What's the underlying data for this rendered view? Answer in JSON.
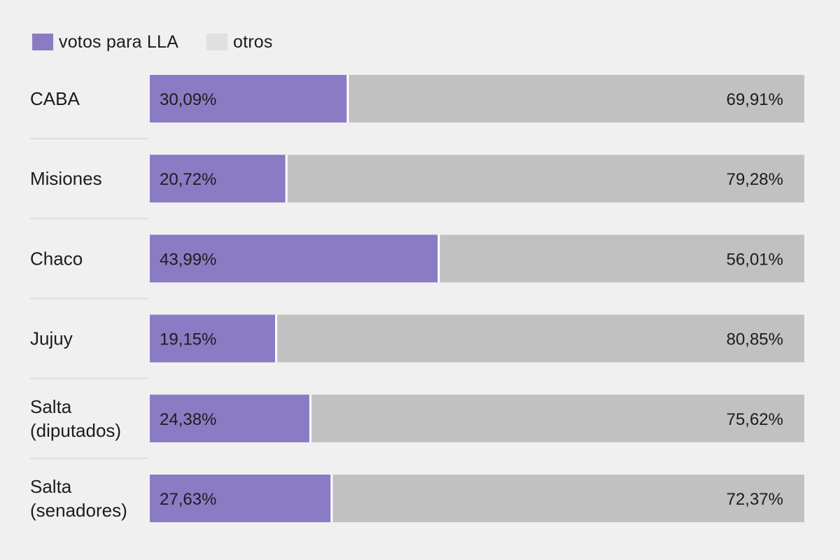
{
  "legend": [
    {
      "label": "votos para LLA",
      "color": "#8b7bc4"
    },
    {
      "label": "otros",
      "color": "#e0e0e0"
    }
  ],
  "colors": {
    "lla": "#8b7bc4",
    "otros": "#c1c1c1",
    "divider": "#ffffff",
    "row_separator": "#dddddd",
    "background": "#f0f0f0"
  },
  "chart_data": {
    "type": "bar",
    "orientation": "horizontal",
    "stacked": true,
    "normalized_to_100": true,
    "categories": [
      "CABA",
      "Misiones",
      "Chaco",
      "Jujuy",
      "Salta\n(diputados)",
      "Salta\n(senadores)"
    ],
    "series": [
      {
        "name": "votos para LLA",
        "color": "#8b7bc4",
        "values": [
          30.09,
          20.72,
          43.99,
          19.15,
          24.38,
          27.63
        ],
        "labels": [
          "30,09%",
          "20,72%",
          "43,99%",
          "19,15%",
          "24,38%",
          "27,63%"
        ]
      },
      {
        "name": "otros",
        "color": "#c1c1c1",
        "values": [
          69.91,
          79.28,
          56.01,
          80.85,
          75.62,
          72.37
        ],
        "labels": [
          "69,91%",
          "79,28%",
          "56,01%",
          "80,85%",
          "75,62%",
          "72,37%"
        ]
      }
    ],
    "xlim": [
      0,
      100
    ],
    "grid": false,
    "legend_position": "top-left"
  }
}
